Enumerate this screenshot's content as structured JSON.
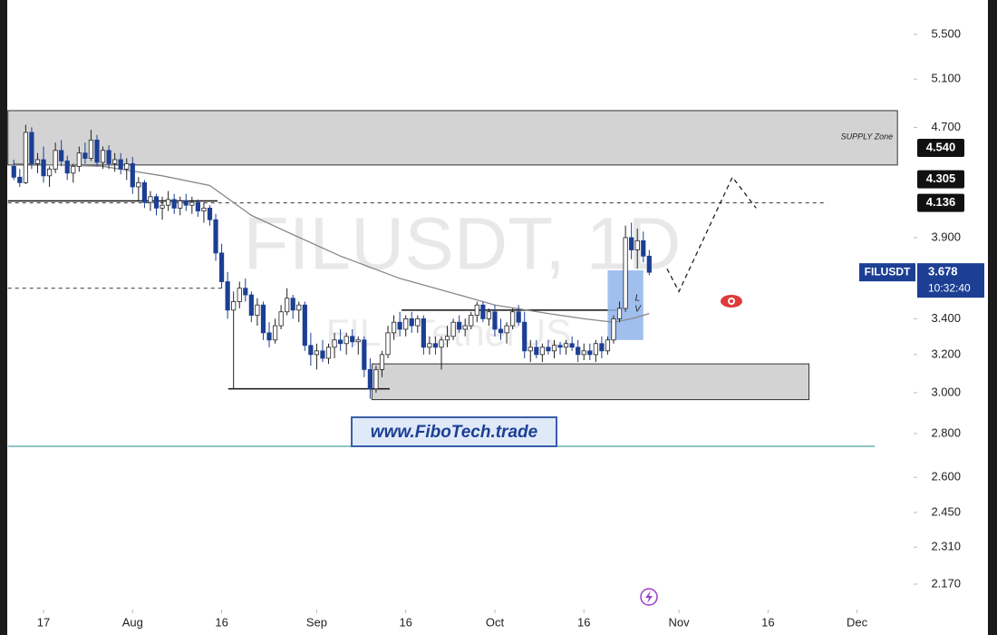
{
  "chart_data": {
    "type": "candlestick",
    "symbol": "FILUSDT",
    "watermark": "FILUSDT, 1D",
    "watermark_sub": "FIL · TetherUS",
    "brand": "www.FiboTech.trade",
    "log_scale": true,
    "xlim": [
      -7.33,
      145.3
    ],
    "ylim": [
      2.085,
      5.83
    ],
    "xticks": [
      {
        "value": 0,
        "label": "17"
      },
      {
        "value": 15,
        "label": "Aug"
      },
      {
        "value": 30,
        "label": "16"
      },
      {
        "value": 46,
        "label": "Sep"
      },
      {
        "value": 61,
        "label": "16"
      },
      {
        "value": 76,
        "label": "Oct"
      },
      {
        "value": 91,
        "label": "16"
      },
      {
        "value": 107,
        "label": "Nov"
      },
      {
        "value": 122,
        "label": "16"
      },
      {
        "value": 137,
        "label": "Dec"
      }
    ],
    "yticks": [
      {
        "value": 5.5,
        "label": "5.500"
      },
      {
        "value": 5.1,
        "label": "5.100"
      },
      {
        "value": 4.7,
        "label": "4.700"
      },
      {
        "value": 3.9,
        "label": "3.900"
      },
      {
        "value": 3.4,
        "label": "3.400"
      },
      {
        "value": 3.2,
        "label": "3.200"
      },
      {
        "value": 3.0,
        "label": "3.000"
      },
      {
        "value": 2.8,
        "label": "2.800"
      },
      {
        "value": 2.6,
        "label": "2.600"
      },
      {
        "value": 2.45,
        "label": "2.450"
      },
      {
        "value": 2.31,
        "label": "2.310"
      },
      {
        "value": 2.17,
        "label": "2.170"
      }
    ],
    "up_color": "#ffffff",
    "down_color": "#1c3f94",
    "x": [
      -5,
      -4,
      -3,
      -2,
      -1,
      0,
      1,
      2,
      3,
      4,
      5,
      6,
      7,
      8,
      9,
      10,
      11,
      12,
      13,
      14,
      15,
      16,
      17,
      18,
      19,
      20,
      21,
      22,
      23,
      24,
      25,
      26,
      27,
      28,
      29,
      30,
      31,
      32,
      33,
      34,
      35,
      36,
      37,
      38,
      39,
      40,
      41,
      42,
      43,
      44,
      45,
      46,
      47,
      48,
      49,
      50,
      51,
      52,
      53,
      54,
      55,
      56,
      57,
      58,
      59,
      60,
      61,
      62,
      63,
      64,
      65,
      66,
      67,
      68,
      69,
      70,
      71,
      72,
      73,
      74,
      75,
      76,
      77,
      78,
      79,
      80,
      81,
      82,
      83,
      84,
      85,
      86,
      87,
      88,
      89,
      90,
      91,
      92,
      93,
      94,
      95,
      96,
      97,
      98,
      99,
      100,
      101,
      102
    ],
    "open": [
      4.4,
      4.32,
      4.28,
      4.66,
      4.42,
      4.45,
      4.33,
      4.38,
      4.52,
      4.44,
      4.35,
      4.4,
      4.5,
      4.46,
      4.6,
      4.43,
      4.52,
      4.42,
      4.45,
      4.38,
      4.42,
      4.25,
      4.28,
      4.14,
      4.18,
      4.1,
      4.12,
      4.16,
      4.1,
      4.15,
      4.12,
      4.14,
      4.08,
      4.1,
      4.02,
      3.8,
      3.62,
      3.45,
      3.5,
      3.58,
      3.54,
      3.42,
      3.48,
      3.32,
      3.28,
      3.36,
      3.44,
      3.52,
      3.45,
      3.48,
      3.25,
      3.2,
      3.22,
      3.18,
      3.24,
      3.28,
      3.26,
      3.3,
      3.27,
      3.28,
      3.12,
      3.02,
      3.12,
      3.2,
      3.32,
      3.38,
      3.34,
      3.4,
      3.36,
      3.4,
      3.24,
      3.26,
      3.24,
      3.28,
      3.3,
      3.38,
      3.34,
      3.36,
      3.42,
      3.48,
      3.4,
      3.44,
      3.34,
      3.32,
      3.36,
      3.44,
      3.38,
      3.22,
      3.24,
      3.2,
      3.24,
      3.22,
      3.25,
      3.24,
      3.26,
      3.24,
      3.2,
      3.22,
      3.2,
      3.26,
      3.22,
      3.28,
      3.4,
      3.46,
      3.9,
      3.82,
      3.88,
      3.78
    ],
    "high": [
      4.45,
      4.38,
      4.72,
      4.7,
      4.5,
      4.55,
      4.4,
      4.58,
      4.6,
      4.48,
      4.42,
      4.55,
      4.58,
      4.68,
      4.64,
      4.55,
      4.56,
      4.5,
      4.5,
      4.46,
      4.47,
      4.32,
      4.3,
      4.22,
      4.2,
      4.18,
      4.22,
      4.2,
      4.18,
      4.2,
      4.18,
      4.16,
      4.14,
      4.12,
      4.06,
      3.86,
      3.68,
      3.56,
      3.62,
      3.64,
      3.56,
      3.52,
      3.5,
      3.38,
      3.4,
      3.48,
      3.58,
      3.54,
      3.5,
      3.5,
      3.32,
      3.26,
      3.28,
      3.26,
      3.32,
      3.34,
      3.32,
      3.34,
      3.3,
      3.3,
      3.18,
      3.14,
      3.22,
      3.36,
      3.42,
      3.44,
      3.42,
      3.44,
      3.42,
      3.42,
      3.3,
      3.3,
      3.3,
      3.36,
      3.4,
      3.42,
      3.4,
      3.44,
      3.5,
      3.5,
      3.46,
      3.48,
      3.4,
      3.38,
      3.46,
      3.48,
      3.44,
      3.28,
      3.28,
      3.26,
      3.28,
      3.28,
      3.27,
      3.28,
      3.3,
      3.28,
      3.26,
      3.26,
      3.28,
      3.3,
      3.3,
      3.42,
      3.5,
      3.98,
      4.0,
      3.96,
      3.94,
      3.82
    ],
    "low": [
      4.3,
      4.25,
      4.27,
      4.38,
      4.35,
      4.28,
      4.25,
      4.35,
      4.4,
      4.3,
      4.28,
      4.36,
      4.42,
      4.44,
      4.4,
      4.38,
      4.38,
      4.36,
      4.34,
      4.3,
      4.2,
      4.15,
      4.1,
      4.08,
      4.05,
      4.02,
      4.08,
      4.06,
      4.05,
      4.08,
      4.06,
      4.04,
      4.0,
      3.98,
      3.75,
      3.58,
      3.4,
      3.02,
      3.46,
      3.5,
      3.38,
      3.36,
      3.28,
      3.24,
      3.26,
      3.34,
      3.42,
      3.4,
      3.38,
      3.22,
      3.14,
      3.12,
      3.16,
      3.15,
      3.18,
      3.22,
      3.2,
      3.24,
      3.2,
      3.08,
      2.97,
      3.0,
      3.08,
      3.18,
      3.28,
      3.3,
      3.3,
      3.32,
      3.32,
      3.2,
      3.2,
      3.2,
      3.12,
      3.24,
      3.28,
      3.32,
      3.3,
      3.34,
      3.38,
      3.38,
      3.36,
      3.3,
      3.28,
      3.26,
      3.34,
      3.36,
      3.18,
      3.16,
      3.18,
      3.16,
      3.2,
      3.18,
      3.2,
      3.2,
      3.22,
      3.16,
      3.17,
      3.17,
      3.16,
      3.18,
      3.2,
      3.26,
      3.38,
      3.44,
      3.76,
      3.7,
      3.74,
      3.66
    ],
    "close": [
      4.32,
      4.28,
      4.66,
      4.42,
      4.45,
      4.33,
      4.38,
      4.52,
      4.44,
      4.35,
      4.4,
      4.5,
      4.46,
      4.6,
      4.43,
      4.52,
      4.42,
      4.45,
      4.38,
      4.42,
      4.25,
      4.28,
      4.14,
      4.18,
      4.1,
      4.12,
      4.16,
      4.1,
      4.15,
      4.12,
      4.14,
      4.08,
      4.1,
      4.02,
      3.8,
      3.62,
      3.45,
      3.5,
      3.58,
      3.54,
      3.42,
      3.48,
      3.32,
      3.28,
      3.36,
      3.44,
      3.52,
      3.45,
      3.48,
      3.25,
      3.2,
      3.22,
      3.18,
      3.24,
      3.28,
      3.26,
      3.3,
      3.27,
      3.28,
      3.12,
      3.02,
      3.12,
      3.2,
      3.32,
      3.38,
      3.34,
      3.4,
      3.36,
      3.4,
      3.24,
      3.26,
      3.24,
      3.28,
      3.3,
      3.38,
      3.34,
      3.36,
      3.42,
      3.48,
      3.4,
      3.44,
      3.34,
      3.32,
      3.36,
      3.44,
      3.38,
      3.22,
      3.24,
      3.2,
      3.24,
      3.22,
      3.25,
      3.24,
      3.26,
      3.24,
      3.2,
      3.22,
      3.2,
      3.26,
      3.22,
      3.28,
      3.4,
      3.46,
      3.9,
      3.82,
      3.88,
      3.78,
      3.678
    ],
    "moving_average": {
      "color": "#888888",
      "x": [
        -5,
        10,
        20,
        28,
        35,
        42,
        50,
        60,
        70,
        76,
        85,
        91,
        96,
        99,
        102
      ],
      "values": [
        4.42,
        4.4,
        4.33,
        4.26,
        4.05,
        3.92,
        3.78,
        3.64,
        3.54,
        3.48,
        3.43,
        3.4,
        3.38,
        3.4,
        3.43
      ]
    },
    "projection": {
      "x": [
        105,
        107,
        116,
        120
      ],
      "values": [
        3.7,
        3.56,
        4.32,
        4.1
      ]
    },
    "zones": [
      {
        "label": "SUPPLY Zone",
        "x0": -6,
        "x1": 143.8,
        "from": 4.41,
        "to": 4.835
      },
      {
        "x0": 55.3,
        "x1": 128.9,
        "from": 2.965,
        "to": 3.15
      }
    ],
    "lines": [
      {
        "style": "dashed",
        "x0": -6,
        "x1": 132,
        "value": 4.136
      },
      {
        "style": "dashed",
        "x0": -6,
        "x1": 30.8,
        "value": 3.58
      },
      {
        "style": "solid",
        "x0": -6,
        "x1": 29.3,
        "value": 4.15
      },
      {
        "style": "solid",
        "x0": 31.1,
        "x1": 58.3,
        "value": 3.02
      },
      {
        "style": "solid",
        "x0": 60.3,
        "x1": 96.5,
        "value": 3.45
      },
      {
        "style": "teal",
        "x0": -6,
        "x1": 140,
        "value": 2.74
      }
    ],
    "box": {
      "x0": 95,
      "x1": 101,
      "from": 3.28,
      "to": 3.69,
      "labels": [
        "L",
        "V"
      ]
    },
    "price_tags": [
      {
        "value": 4.54,
        "label": "4.540"
      },
      4.305,
      4.136
    ],
    "last_price": 3.678,
    "countdown": "10:32:40"
  }
}
